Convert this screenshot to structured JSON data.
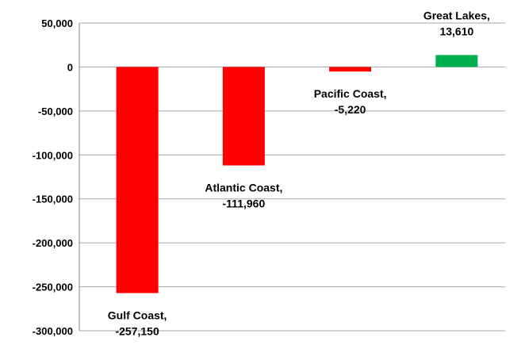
{
  "chart_data": {
    "type": "bar",
    "categories": [
      "Gulf Coast",
      "Atlantic Coast",
      "Pacific Coast",
      "Great Lakes"
    ],
    "values": [
      -257150,
      -111960,
      -5220,
      13610
    ],
    "value_labels": [
      "-257,150",
      "-111,960",
      "-5,220",
      "13,610"
    ],
    "category_labels": [
      "Gulf Coast,",
      "Atlantic Coast,",
      "Pacific Coast,",
      "Great Lakes,"
    ],
    "ylim": [
      -300000,
      50000
    ],
    "yticks": [
      50000,
      0,
      -50000,
      -100000,
      -150000,
      -200000,
      -250000,
      -300000
    ],
    "ytick_labels": [
      "50,000",
      "0",
      "-50,000",
      "-100,000",
      "-150,000",
      "-200,000",
      "-250,000",
      "-300,000"
    ],
    "grid": true,
    "colors": {
      "negative": "#ff0000",
      "positive": "#00b050",
      "grid": "#a6a6a6",
      "axis": "#7f7f7f"
    }
  }
}
